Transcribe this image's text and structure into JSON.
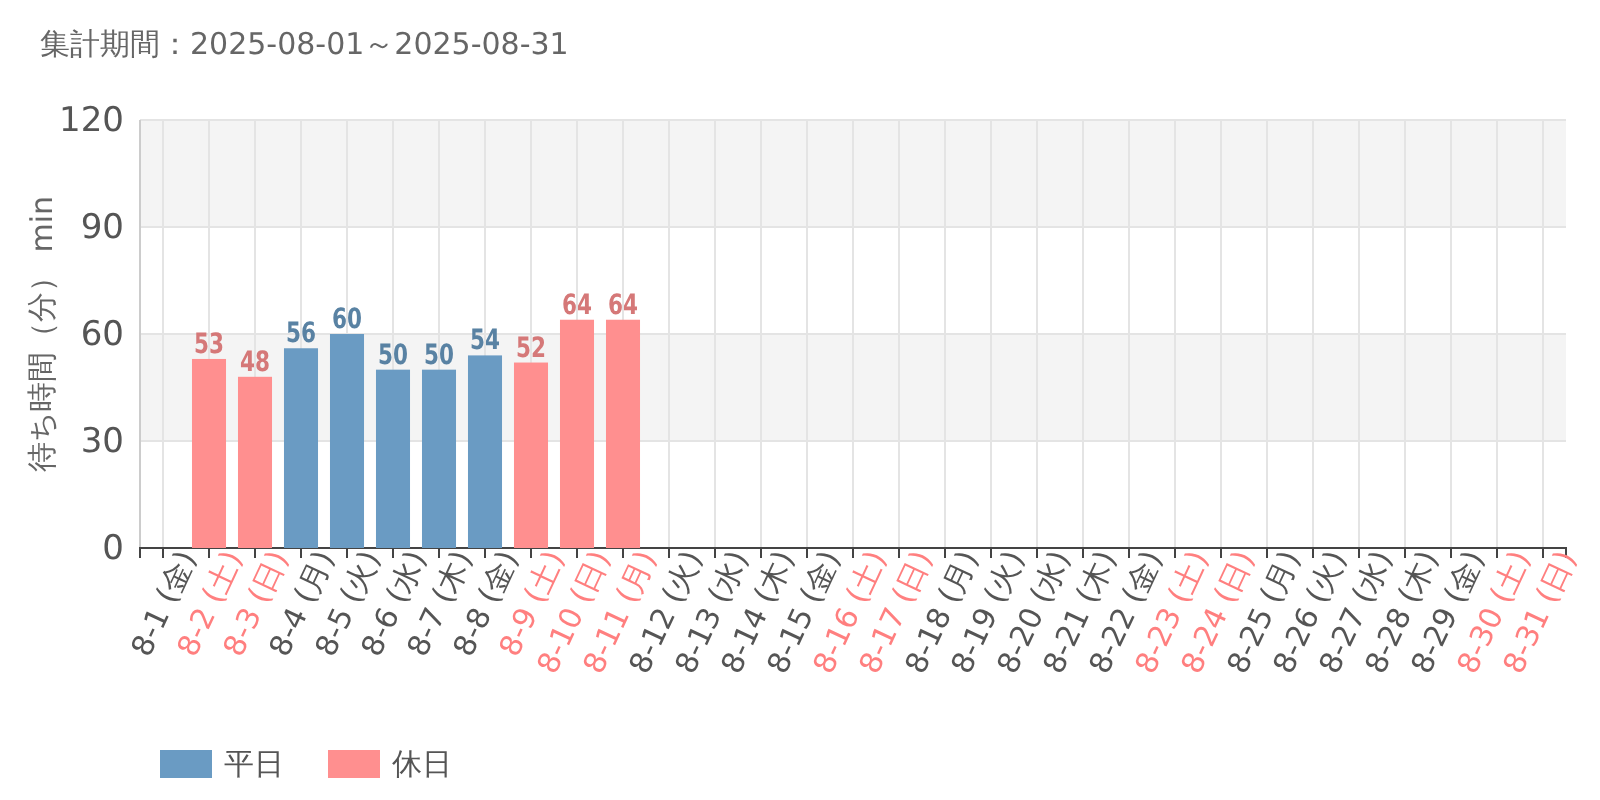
{
  "chart_data": {
    "type": "bar",
    "title": "集計期間：2025-08-01～2025-08-31",
    "ylabel": "待ち時間（分） min",
    "categories": [
      "8-1 (金)",
      "8-2 (土)",
      "8-3 (日)",
      "8-4 (月)",
      "8-5 (火)",
      "8-6 (水)",
      "8-7 (木)",
      "8-8 (金)",
      "8-9 (土)",
      "8-10 (日)",
      "8-11 (月)",
      "8-12 (火)",
      "8-13 (水)",
      "8-14 (木)",
      "8-15 (金)",
      "8-16 (土)",
      "8-17 (日)",
      "8-18 (月)",
      "8-19 (火)",
      "8-20 (水)",
      "8-21 (木)",
      "8-22 (金)",
      "8-23 (土)",
      "8-24 (日)",
      "8-25 (月)",
      "8-26 (火)",
      "8-27 (水)",
      "8-28 (木)",
      "8-29 (金)",
      "8-30 (土)",
      "8-31 (日)"
    ],
    "colors": [
      "#555555",
      "#ff7f7f",
      "#ff7f7f",
      "#555555",
      "#555555",
      "#555555",
      "#555555",
      "#555555",
      "#ff7f7f",
      "#ff7f7f",
      "#ff7f7f",
      "#555555",
      "#555555",
      "#555555",
      "#555555",
      "#ff7f7f",
      "#ff7f7f",
      "#555555",
      "#555555",
      "#555555",
      "#555555",
      "#555555",
      "#ff7f7f",
      "#ff7f7f",
      "#555555",
      "#555555",
      "#555555",
      "#555555",
      "#555555",
      "#ff7f7f",
      "#ff7f7f"
    ],
    "series": [
      {
        "name": "平日",
        "color": "#6a9bc3",
        "values": [
          null,
          null,
          null,
          56,
          60,
          50,
          50,
          54,
          null,
          null,
          null,
          null,
          null,
          null,
          null,
          null,
          null,
          null,
          null,
          null,
          null,
          null,
          null,
          null,
          null,
          null,
          null,
          null,
          null,
          null,
          null
        ]
      },
      {
        "name": "休日",
        "color": "#ff8f8f",
        "values": [
          null,
          53,
          48,
          null,
          null,
          null,
          null,
          null,
          52,
          64,
          64,
          null,
          null,
          null,
          null,
          null,
          null,
          null,
          null,
          null,
          null,
          null,
          null,
          null,
          null,
          null,
          null,
          null,
          null,
          null,
          null
        ]
      }
    ],
    "ylim": [
      0,
      120
    ],
    "yticks": [
      0,
      30,
      60,
      90,
      120
    ],
    "grid": true,
    "legend": "bottom left",
    "data_labels": true
  }
}
